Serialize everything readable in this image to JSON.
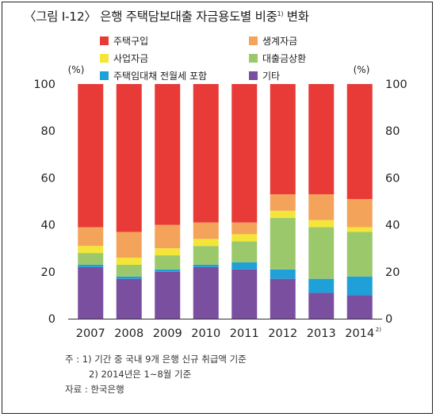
{
  "title": {
    "text": "〈그림 Ⅰ-12〉 은행 주택담보대출 자금용도별 비중",
    "sup": "1)",
    "suffix": " 변화"
  },
  "chart_data": {
    "type": "bar",
    "stacked": true,
    "unit_left": "(%)",
    "unit_right": "(%)",
    "ylim": [
      0,
      100
    ],
    "yticks": [
      0,
      20,
      40,
      60,
      80,
      100
    ],
    "categories": [
      "2007",
      "2008",
      "2009",
      "2010",
      "2011",
      "2012",
      "2013",
      "2014"
    ],
    "category_sup": [
      "",
      "",
      "",
      "",
      "",
      "",
      "",
      "2)"
    ],
    "series": [
      {
        "name": "기타",
        "color": "#7b4fa0",
        "values": [
          22,
          17,
          20,
          22,
          21,
          17,
          11,
          10
        ]
      },
      {
        "name": "주택임대채 전월세 포함",
        "color": "#1fa0d8",
        "values": [
          1,
          1,
          1,
          1,
          3,
          4,
          6,
          8
        ]
      },
      {
        "name": "대출금상환",
        "color": "#9cc86c",
        "values": [
          5,
          5,
          6,
          8,
          9,
          22,
          22,
          19
        ]
      },
      {
        "name": "사업자금",
        "color": "#f4e638",
        "values": [
          3,
          3,
          3,
          3,
          3,
          3,
          3,
          2
        ]
      },
      {
        "name": "생계자금",
        "color": "#f4a45a",
        "values": [
          8,
          11,
          10,
          7,
          5,
          7,
          11,
          12
        ]
      },
      {
        "name": "주택구입",
        "color": "#e83a36",
        "values": [
          61,
          63,
          60,
          59,
          59,
          47,
          47,
          49
        ]
      }
    ]
  },
  "legend": [
    {
      "label": "주택구입",
      "color": "#e83a36"
    },
    {
      "label": "생계자금",
      "color": "#f4a45a"
    },
    {
      "label": "사업자금",
      "color": "#f4e638"
    },
    {
      "label": "대출금상환",
      "color": "#9cc86c"
    },
    {
      "label": "주택임대채 전월세 포함",
      "color": "#1fa0d8"
    },
    {
      "label": "기타",
      "color": "#7b4fa0"
    }
  ],
  "notes": {
    "line1": "주 : 1) 기간 중 국내 9개 은행 신규 취급액 기준",
    "line2": "2) 2014년은 1~8월 기준",
    "line3": "자료 : 한국은행"
  }
}
